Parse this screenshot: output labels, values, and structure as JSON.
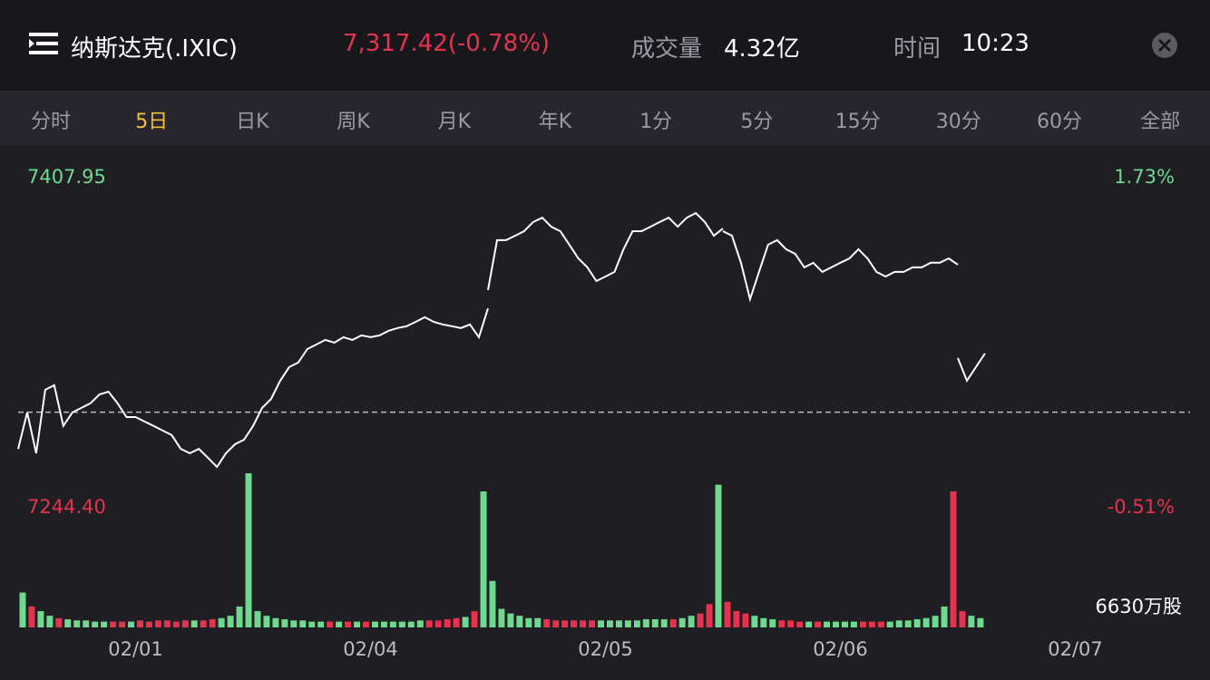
{
  "header": {
    "title": "纳斯达克(.IXIC)",
    "quote": "7,317.42(-0.78%)",
    "volume_label": "成交量",
    "volume": "4.32亿",
    "time_label": "时间",
    "time": "10:23"
  },
  "tabs": {
    "items": [
      "分时",
      "5日",
      "日K",
      "周K",
      "月K",
      "年K",
      "1分",
      "5分",
      "15分",
      "30分",
      "60分",
      "全部"
    ],
    "selected": 1
  },
  "chart_data": {
    "type": "line",
    "categories": [
      "02/01",
      "02/04",
      "02/05",
      "02/06",
      "02/07"
    ],
    "ylim": [
      7244.4,
      7407.95
    ],
    "yticks": [
      {
        "value": 7244.4,
        "label": "7244.40"
      },
      {
        "value": 7407.95,
        "label": "7407.95"
      }
    ],
    "y2lim": [
      -0.51,
      1.73
    ],
    "y2ticks": [
      {
        "value": -0.51,
        "label": "-0.51%"
      },
      {
        "value": 1.73,
        "label": "1.73%"
      }
    ],
    "up_color": "#6fd98f",
    "down_color": "#e5334f",
    "line_color": "#ffffff",
    "price_by_day": [
      [
        7264.0,
        7281.5,
        7261.9,
        7292.4,
        7294.6,
        7275.0,
        7281.5,
        7283.7,
        7285.9,
        7290.2,
        7291.5,
        7285.9,
        7279.3,
        7279.3,
        7277.1,
        7275.0,
        7272.8,
        7270.6,
        7264.0,
        7261.9,
        7264.0,
        7259.7,
        7255.3,
        7261.9,
        7266.2,
        7268.4,
        7275.0
      ],
      [
        7275.0,
        7283.7,
        7288.0,
        7296.8,
        7303.3,
        7305.5,
        7312.0,
        7314.2,
        7316.4,
        7315.1,
        7317.7,
        7316.4,
        7318.6,
        7317.7,
        7318.6,
        7320.8,
        7322.1,
        7323.0,
        7325.1,
        7327.3,
        7325.1,
        7323.8,
        7323.0,
        7322.1,
        7323.8,
        7317.7,
        7331.6
      ],
      [
        7340.4,
        7364.4,
        7364.4,
        7366.5,
        7368.7,
        7373.1,
        7375.2,
        7370.9,
        7368.7,
        7362.2,
        7355.6,
        7351.3,
        7344.7,
        7346.9,
        7349.1,
        7360.0,
        7368.7,
        7368.7,
        7370.9,
        7373.1,
        7375.2,
        7370.9,
        7375.2,
        7377.4,
        7373.1,
        7366.5,
        7370.0
      ],
      [
        7368.7,
        7366.5,
        7353.5,
        7336.0,
        7349.1,
        7362.2,
        7364.4,
        7360.0,
        7357.8,
        7351.3,
        7353.5,
        7349.1,
        7351.3,
        7353.5,
        7355.6,
        7360.0,
        7355.6,
        7349.1,
        7346.9,
        7349.1,
        7349.1,
        7351.3,
        7351.3,
        7353.5,
        7353.5,
        7355.6,
        7352.6
      ],
      [
        7307.7,
        7296.8,
        7303.3,
        7309.9
      ]
    ],
    "volume_max": {
      "value": 6630,
      "label": "6630万股"
    },
    "volume_by_day": [
      [
        1500,
        900,
        700,
        500,
        400,
        350,
        300,
        300,
        250,
        250,
        250,
        250,
        250,
        300,
        250,
        300,
        300,
        250,
        300,
        300,
        300,
        350,
        400,
        500,
        900,
        6630
      ],
      [
        700,
        500,
        400,
        350,
        300,
        300,
        250,
        250,
        250,
        250,
        250,
        250,
        250,
        250,
        250,
        250,
        250,
        250,
        300,
        300,
        300,
        350,
        400,
        450,
        700,
        5850
      ],
      [
        2000,
        800,
        600,
        500,
        400,
        400,
        350,
        300,
        300,
        300,
        300,
        300,
        300,
        300,
        300,
        300,
        300,
        350,
        350,
        350,
        350,
        400,
        500,
        600,
        1000,
        6140
      ],
      [
        1100,
        700,
        600,
        500,
        400,
        350,
        300,
        300,
        250,
        250,
        250,
        250,
        250,
        250,
        250,
        250,
        250,
        250,
        250,
        300,
        300,
        350,
        400,
        500,
        900,
        5850
      ],
      [
        700,
        500,
        400
      ]
    ]
  }
}
